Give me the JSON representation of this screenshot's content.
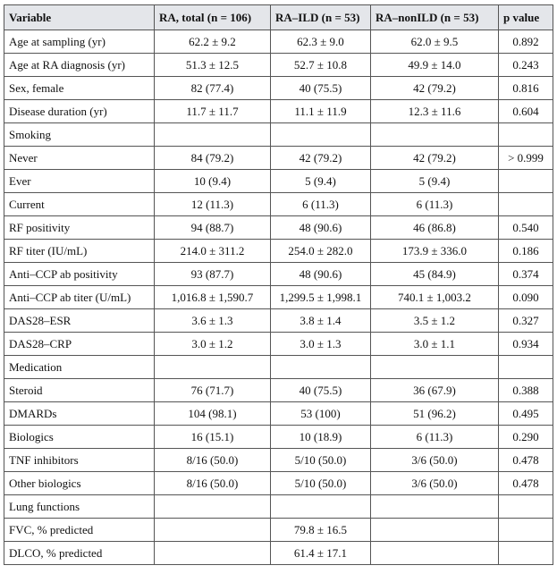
{
  "table": {
    "header": [
      "Variable",
      "RA, total (n = 106)",
      "RA–ILD (n = 53)",
      "RA–nonILD (n = 53)",
      "p value"
    ],
    "rows": [
      [
        "Age at sampling (yr)",
        "62.2 ± 9.2",
        "62.3 ± 9.0",
        "62.0 ± 9.5",
        "0.892"
      ],
      [
        "Age at RA diagnosis (yr)",
        "51.3 ± 12.5",
        "52.7 ± 10.8",
        "49.9 ± 14.0",
        "0.243"
      ],
      [
        "Sex, female",
        "82 (77.4)",
        "40 (75.5)",
        "42 (79.2)",
        "0.816"
      ],
      [
        "Disease duration (yr)",
        "11.7 ± 11.7",
        "11.1 ± 11.9",
        "12.3 ± 11.6",
        "0.604"
      ],
      [
        "Smoking",
        null,
        null,
        null,
        null
      ],
      [
        "Never",
        "84 (79.2)",
        "42 (79.2)",
        "42 (79.2)",
        "> 0.999"
      ],
      [
        "Ever",
        "10 (9.4)",
        "5 (9.4)",
        "5 (9.4)",
        null
      ],
      [
        "Current",
        "12 (11.3)",
        "6 (11.3)",
        "6 (11.3)",
        null
      ],
      [
        "RF positivity",
        "94 (88.7)",
        "48 (90.6)",
        "46 (86.8)",
        "0.540"
      ],
      [
        "RF titer (IU/mL)",
        "214.0 ± 311.2",
        "254.0 ± 282.0",
        "173.9 ± 336.0",
        "0.186"
      ],
      [
        "Anti–CCP ab positivity",
        "93 (87.7)",
        "48 (90.6)",
        "45 (84.9)",
        "0.374"
      ],
      [
        "Anti–CCP ab titer (U/mL)",
        "1,016.8 ± 1,590.7",
        "1,299.5 ± 1,998.1",
        "740.1 ± 1,003.2",
        "0.090"
      ],
      [
        "DAS28–ESR",
        "3.6 ± 1.3",
        "3.8 ± 1.4",
        "3.5 ± 1.2",
        "0.327"
      ],
      [
        "DAS28–CRP",
        "3.0 ± 1.2",
        "3.0 ± 1.3",
        "3.0 ± 1.1",
        "0.934"
      ],
      [
        "Medication",
        null,
        null,
        null,
        null
      ],
      [
        "Steroid",
        "76 (71.7)",
        "40 (75.5)",
        "36 (67.9)",
        "0.388"
      ],
      [
        "DMARDs",
        "104 (98.1)",
        "53 (100)",
        "51 (96.2)",
        "0.495"
      ],
      [
        "Biologics",
        "16 (15.1)",
        "10 (18.9)",
        "6 (11.3)",
        "0.290"
      ],
      [
        "TNF inhibitors",
        "8/16 (50.0)",
        "5/10 (50.0)",
        "3/6 (50.0)",
        "0.478"
      ],
      [
        "Other biologics",
        "8/16 (50.0)",
        "5/10 (50.0)",
        "3/6 (50.0)",
        "0.478"
      ],
      [
        "Lung functions",
        null,
        null,
        null,
        null
      ],
      [
        "FVC, % predicted",
        null,
        "79.8 ± 16.5",
        null,
        null
      ],
      [
        "DLCO, % predicted",
        null,
        "61.4 ± 17.1",
        null,
        null
      ]
    ]
  }
}
